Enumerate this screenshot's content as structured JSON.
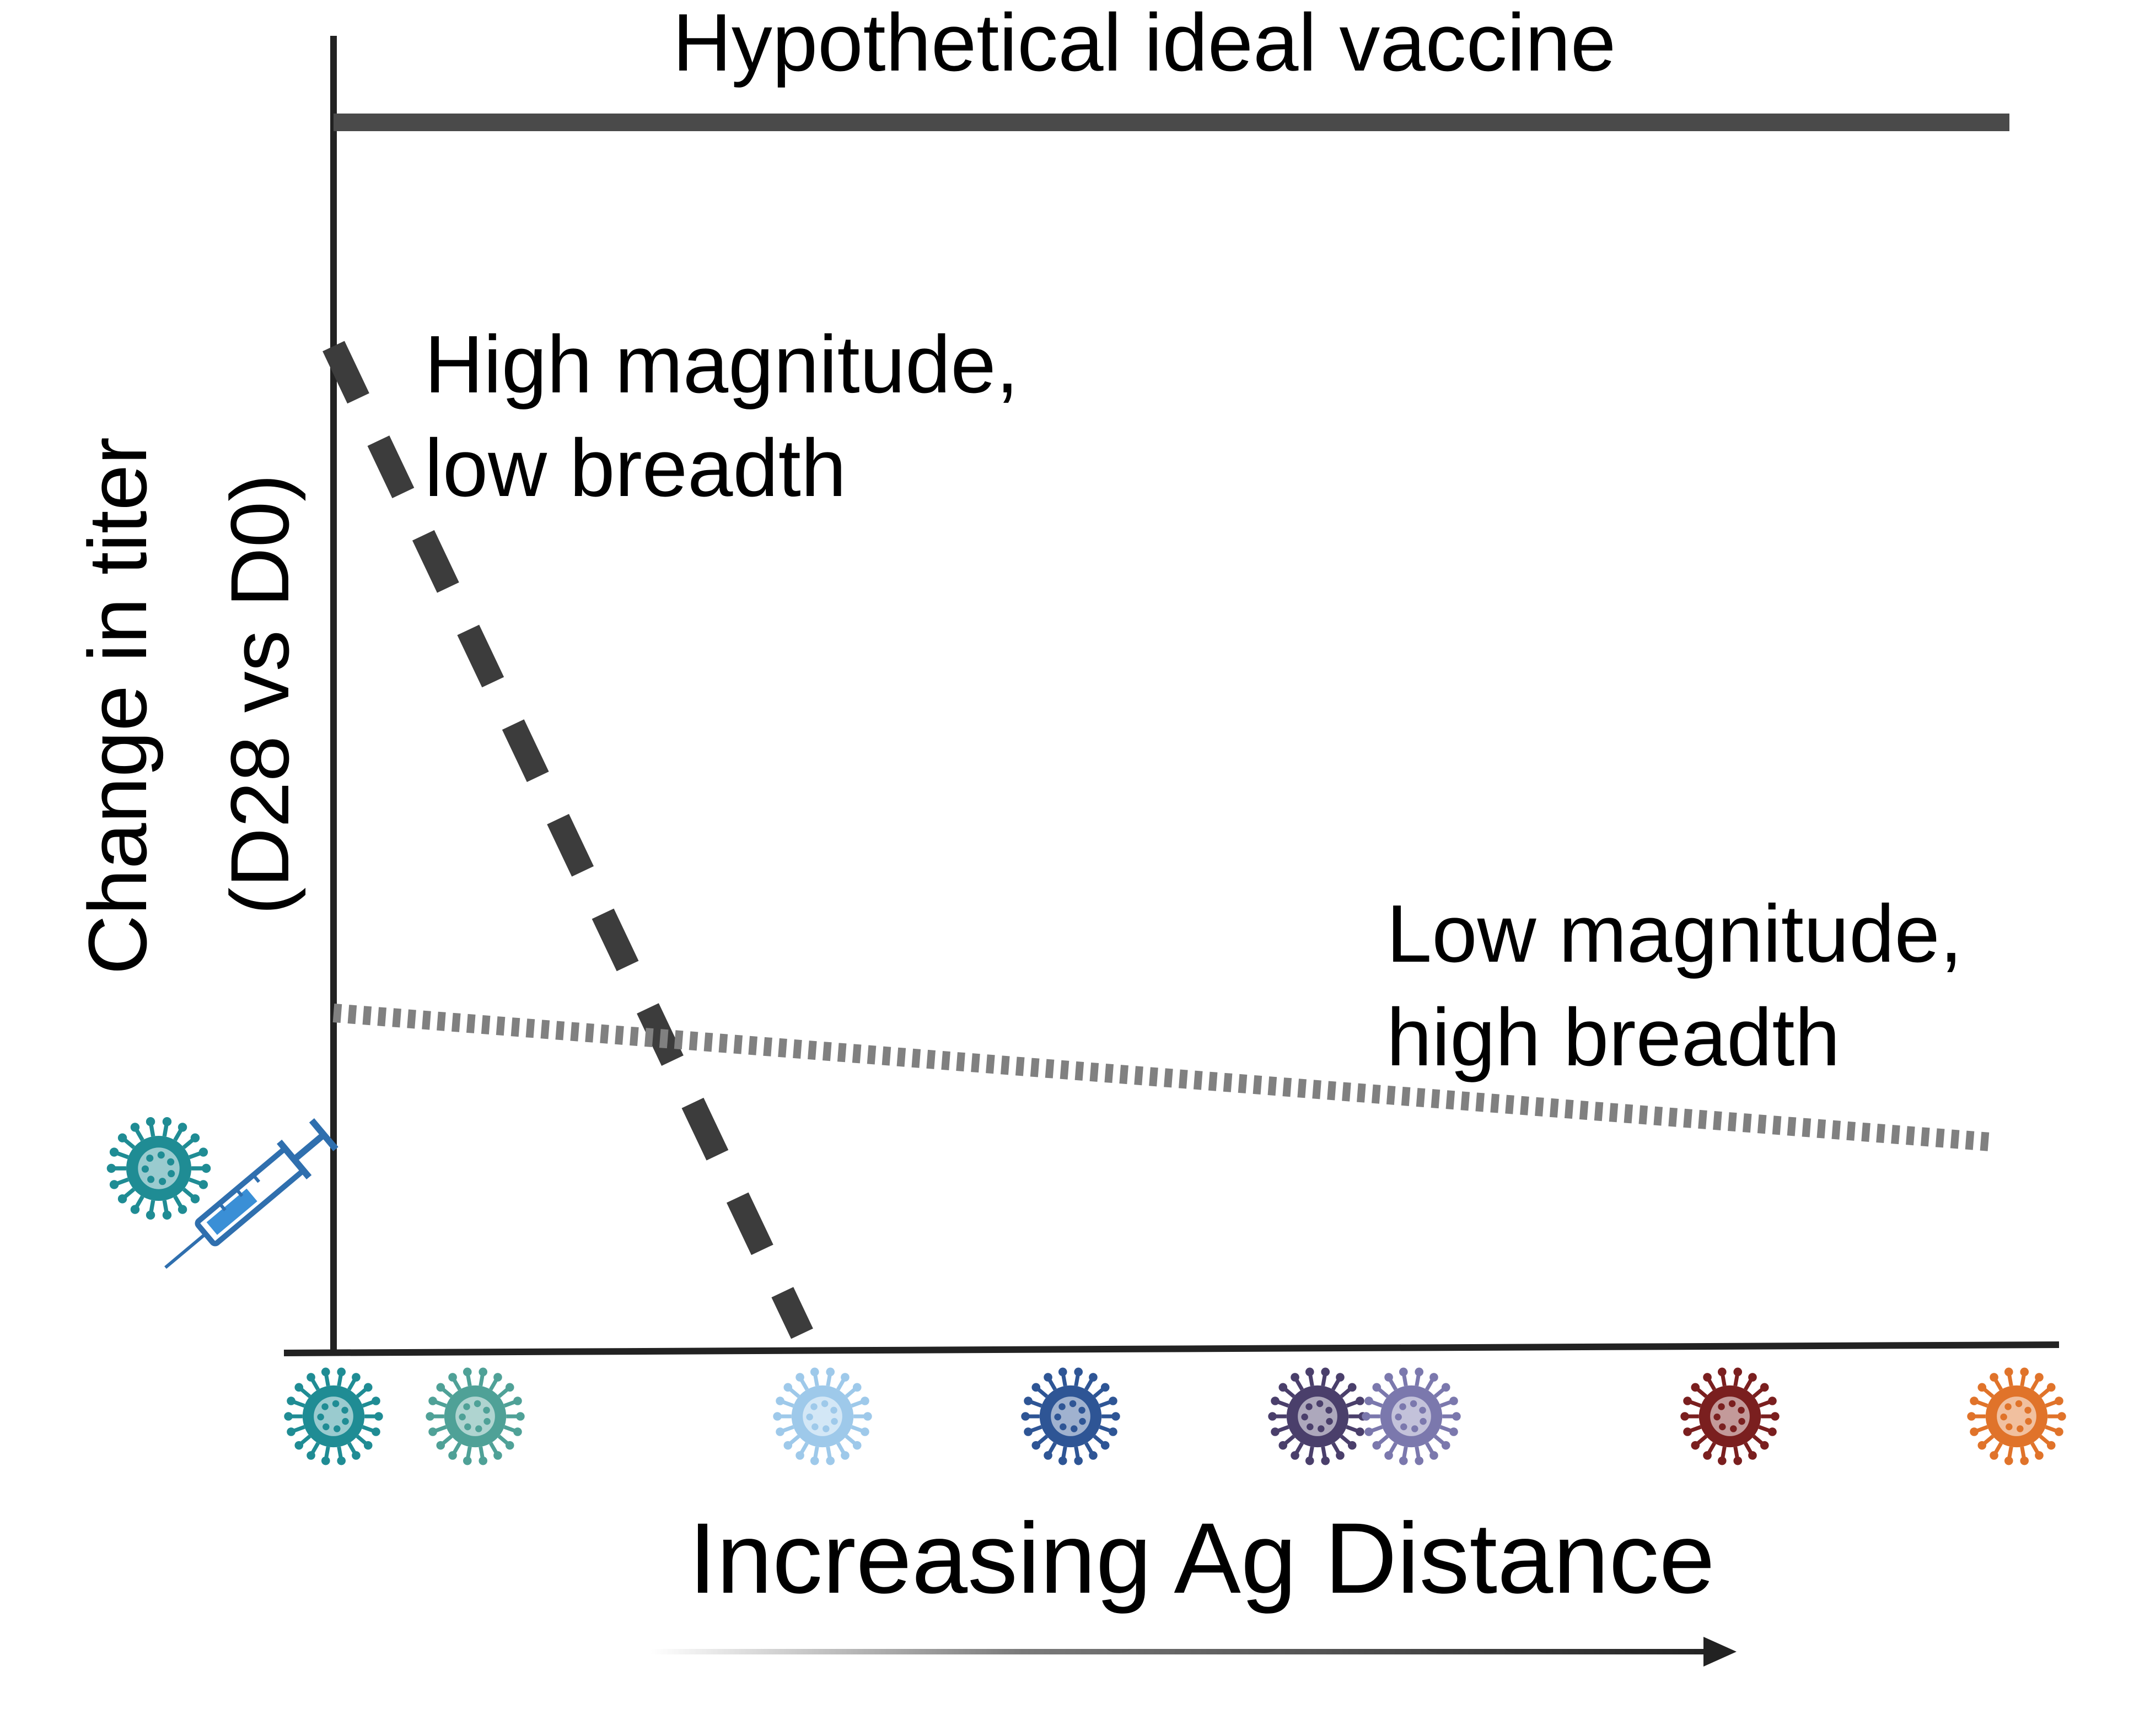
{
  "labels": {
    "ideal": "Hypothetical ideal vaccine",
    "high_line1": "High magnitude,",
    "high_line2": "low breadth",
    "low_line1": "Low magnitude,",
    "low_line2": "high breadth",
    "y_line1": "Change in titer",
    "y_line2": "(D28 vs D0)",
    "x_axis": "Increasing Ag Distance"
  },
  "colors": {
    "axis": "#222222",
    "ideal_line": "#4a4a4a",
    "high_magnitude_line": "#3c3c3c",
    "low_magnitude_line": "#808080",
    "vaccine_strain": "#1f8c94",
    "syringe": "#2f6fae"
  },
  "icons": {
    "vaccine_strain": "virus-icon",
    "syringe": "syringe-icon"
  },
  "virus_strains": [
    {
      "name": "strain-1",
      "color": "#1f8c94"
    },
    {
      "name": "strain-2",
      "color": "#4fa197"
    },
    {
      "name": "strain-3",
      "color": "#9ec9ea"
    },
    {
      "name": "strain-4",
      "color": "#2e5595"
    },
    {
      "name": "strain-5",
      "color": "#4a3f6b"
    },
    {
      "name": "strain-6",
      "color": "#7b78ad"
    },
    {
      "name": "strain-7",
      "color": "#7a1f1f"
    },
    {
      "name": "strain-8",
      "color": "#e0732a"
    }
  ]
}
